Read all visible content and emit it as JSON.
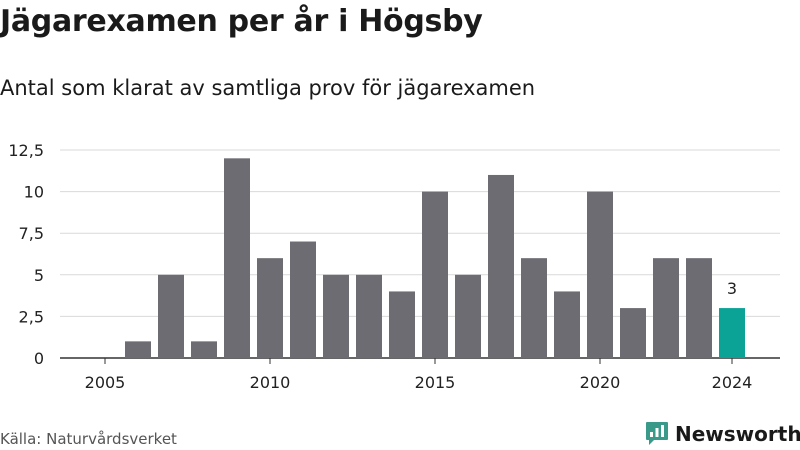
{
  "title": "Jägarexamen per år i Högsby",
  "subtitle": "Antal som klarat av samtliga prov för jägarexamen",
  "source": "Källa: Naturvårdsverket",
  "brand": {
    "name": "Newsworthy",
    "icon": "newsworthy-logo-icon",
    "color": "#3a9a8a"
  },
  "colors": {
    "bar": "#6d6c72",
    "highlight": "#0aa396",
    "grid": "#d9d9d9",
    "axis": "#333333",
    "text": "#222222"
  },
  "chart_data": {
    "type": "bar",
    "title": "Jägarexamen per år i Högsby",
    "subtitle": "Antal som klarat av samtliga prov för jägarexamen",
    "x": [
      2005,
      2006,
      2007,
      2008,
      2009,
      2010,
      2011,
      2012,
      2013,
      2014,
      2015,
      2016,
      2017,
      2018,
      2019,
      2020,
      2021,
      2022,
      2023,
      2024
    ],
    "values": [
      0,
      1,
      5,
      1,
      12,
      6,
      7,
      5,
      5,
      4,
      10,
      5,
      11,
      6,
      4,
      10,
      3,
      6,
      6,
      3
    ],
    "highlight_index": 19,
    "highlight_label": "3",
    "yticks": [
      0,
      2.5,
      5,
      7.5,
      10,
      12.5
    ],
    "ytick_labels": [
      "0",
      "2,5",
      "5",
      "7,5",
      "10",
      "12,5"
    ],
    "xticks": [
      2005,
      2010,
      2015,
      2020,
      2024
    ],
    "xtick_labels": [
      "2005",
      "2010",
      "2015",
      "2020",
      "2024"
    ],
    "ylim": [
      0,
      12.5
    ],
    "grid": true,
    "legend": "none"
  }
}
